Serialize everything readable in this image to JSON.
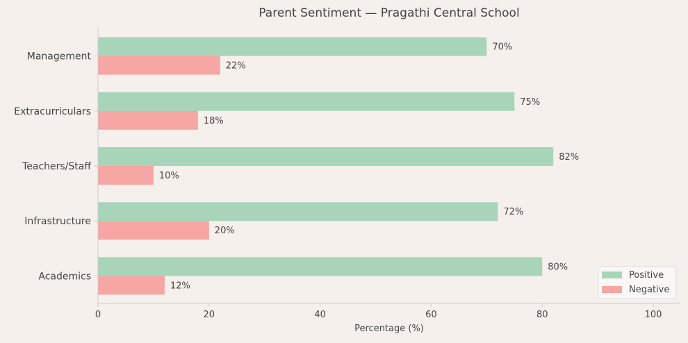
{
  "chart_data": {
    "type": "bar",
    "orientation": "horizontal",
    "title": "Parent Sentiment — Pragathi Central School",
    "xlabel": "Percentage (%)",
    "ylabel": "",
    "xlim": [
      0,
      105
    ],
    "xticks": [
      0,
      20,
      40,
      60,
      80,
      100
    ],
    "categories": [
      "Management",
      "Extracurriculars",
      "Teachers/Staff",
      "Infrastructure",
      "Academics"
    ],
    "series": [
      {
        "name": "Positive",
        "color": "#a8d5ba",
        "values": [
          70,
          75,
          82,
          72,
          80
        ],
        "labels": [
          "70%",
          "75%",
          "82%",
          "72%",
          "80%"
        ]
      },
      {
        "name": "Negative",
        "color": "#f6a6a3",
        "values": [
          22,
          18,
          10,
          20,
          12
        ],
        "labels": [
          "22%",
          "18%",
          "10%",
          "20%",
          "12%"
        ]
      }
    ],
    "grid": false,
    "legend": "bottom-right"
  }
}
